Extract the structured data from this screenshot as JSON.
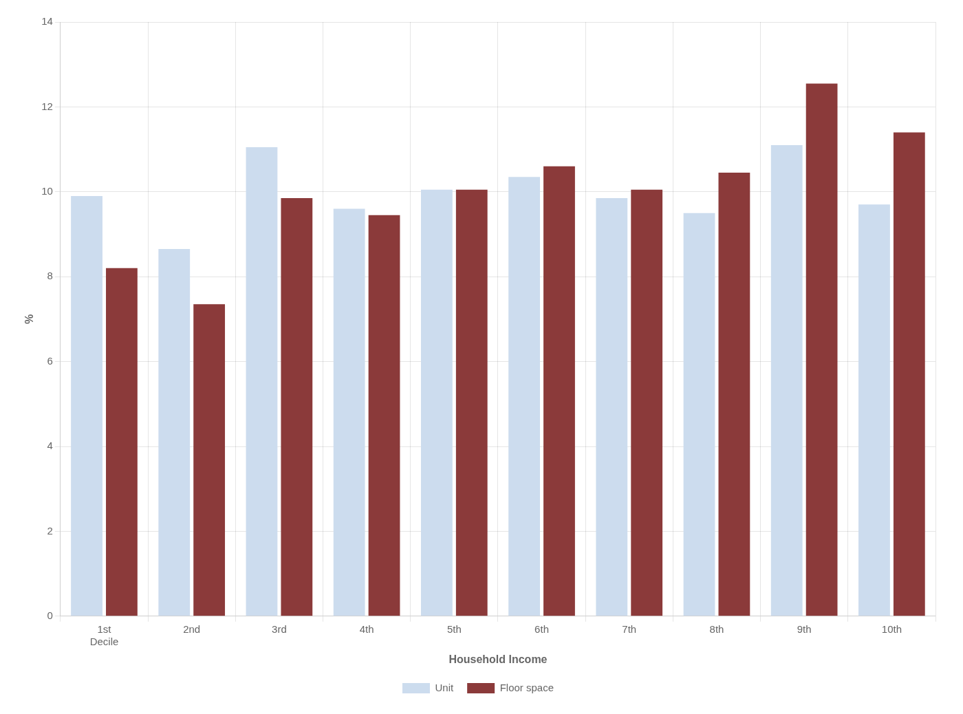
{
  "chart_data": {
    "type": "bar",
    "categories": [
      "1st\nDecile",
      "2nd",
      "3rd",
      "4th",
      "5th",
      "6th",
      "7th",
      "8th",
      "9th",
      "10th"
    ],
    "series": [
      {
        "name": "Unit",
        "color": "#ccdcee",
        "values": [
          9.9,
          8.65,
          11.05,
          9.6,
          10.05,
          10.35,
          9.85,
          9.5,
          11.1,
          9.7
        ]
      },
      {
        "name": "Floor space",
        "color": "#8b3a3a",
        "values": [
          8.2,
          7.35,
          9.85,
          9.45,
          10.05,
          10.6,
          10.05,
          10.45,
          12.55,
          11.4
        ]
      }
    ],
    "xlabel": "Household Income",
    "ylabel": "%",
    "ylim": [
      0,
      14
    ],
    "yticks": [
      0,
      2,
      4,
      6,
      8,
      10,
      12,
      14
    ],
    "grid": true,
    "legend": "bottom"
  }
}
